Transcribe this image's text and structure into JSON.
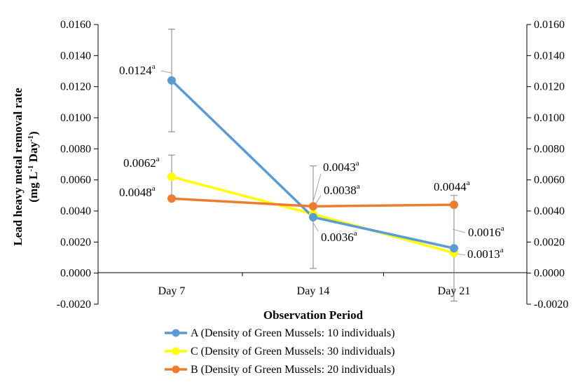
{
  "chart_data": {
    "type": "line",
    "categories": [
      "Day 7",
      "Day 14",
      "Day 21"
    ],
    "ylim": [
      -0.002,
      0.016
    ],
    "yticks": [
      "-0.0020",
      "0.0000",
      "0.0020",
      "0.0040",
      "0.0060",
      "0.0080",
      "0.0100",
      "0.0120",
      "0.0140",
      "0.0160"
    ],
    "ylabel_line1": "Lead heavy metal removal rate",
    "ylabel_line2_pre": "(mg L",
    "ylabel_line2_sup1": "-1",
    "ylabel_line2_mid": " Day",
    "ylabel_line2_sup2": "-1",
    "ylabel_line2_post": ")",
    "xlabel": "Observation Period",
    "secondary_y_axis": true,
    "legend_position": "bottom",
    "series": [
      {
        "name": "A (Density of Green Mussels: 10 individuals)",
        "color": "#5b9bd5",
        "values": [
          0.0124,
          0.0036,
          0.0016
        ],
        "labels": [
          "0.0124",
          "0.0036",
          "0.0016"
        ],
        "superscripts": [
          "a",
          "a",
          "a"
        ],
        "error_bars": [
          [
            0.0091,
            0.0157
          ],
          [
            0.0003,
            0.0069
          ],
          [
            -0.0018,
            0.005
          ]
        ]
      },
      {
        "name": "C (Density of Green Mussels: 30 individuals)",
        "color": "#ffff00",
        "values": [
          0.0062,
          0.0038,
          0.0013
        ],
        "labels": [
          "0.0062",
          "0.0038",
          "0.0013"
        ],
        "superscripts": [
          "a",
          "a",
          "a"
        ],
        "error_bars": [
          [
            0.0048,
            0.0076
          ],
          null,
          null
        ]
      },
      {
        "name": "B (Density of Green Mussels: 20 individuals)",
        "color": "#ed7d31",
        "values": [
          0.0048,
          0.0043,
          0.0044
        ],
        "labels": [
          "0.0048",
          "0.0043",
          "0.0044"
        ],
        "superscripts": [
          "a",
          "a",
          "a"
        ],
        "error_bars": [
          null,
          null,
          null
        ]
      }
    ]
  }
}
